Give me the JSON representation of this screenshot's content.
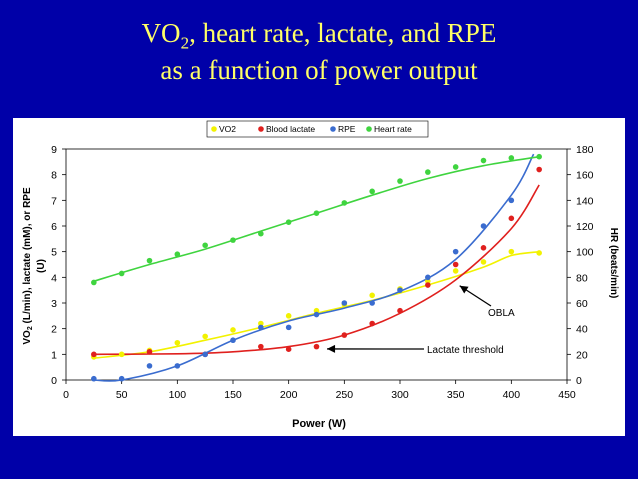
{
  "slide": {
    "title_prefix": "VO",
    "title_sub": "2",
    "title_rest": ", heart rate, lactate, and RPE",
    "title_line2": "as a function of power output"
  },
  "colors": {
    "background": "#0000a8",
    "title": "#ffff66",
    "vo2": "#f2f200",
    "lactate": "#e0201e",
    "rpe": "#3a6ccf",
    "hr": "#3fd43f"
  },
  "chart_data": {
    "type": "scatter",
    "title": "",
    "xlabel": "Power (W)",
    "ylabel": "VO2 (L/min), lactate (mM), or RPE (U)",
    "ylabel_line1": "VO",
    "ylabel_sub": "2",
    "ylabel_line1_rest": " (L/min), lactate (mM), or RPE",
    "ylabel_line2": "(U)",
    "y2label": "HR (beats/min)",
    "xlim": [
      0,
      450
    ],
    "ylim": [
      0,
      9
    ],
    "y2lim": [
      0,
      180
    ],
    "xticks": [
      0,
      50,
      100,
      150,
      200,
      250,
      300,
      350,
      400,
      450
    ],
    "yticks": [
      0,
      1,
      2,
      3,
      4,
      5,
      6,
      7,
      8,
      9
    ],
    "y2ticks": [
      0,
      20,
      40,
      60,
      80,
      100,
      120,
      140,
      160,
      180
    ],
    "legend_position": "top",
    "series": [
      {
        "name": "VO2",
        "axis": "left",
        "color_key": "vo2",
        "x": [
          25,
          50,
          75,
          100,
          125,
          150,
          175,
          200,
          225,
          250,
          275,
          300,
          325,
          350,
          375,
          400,
          425
        ],
        "y": [
          0.9,
          1.0,
          1.15,
          1.45,
          1.7,
          1.95,
          2.2,
          2.5,
          2.7,
          2.95,
          3.3,
          3.55,
          3.85,
          4.25,
          4.6,
          5.0,
          4.95
        ],
        "fit": [
          [
            25,
            0.85
          ],
          [
            75,
            1.1
          ],
          [
            125,
            1.55
          ],
          [
            175,
            2.05
          ],
          [
            225,
            2.6
          ],
          [
            275,
            3.1
          ],
          [
            325,
            3.7
          ],
          [
            375,
            4.4
          ],
          [
            400,
            4.85
          ],
          [
            425,
            5.0
          ]
        ]
      },
      {
        "name": "Blood lactate",
        "axis": "left",
        "color_key": "lactate",
        "x": [
          25,
          75,
          125,
          175,
          200,
          225,
          250,
          275,
          300,
          325,
          350,
          375,
          400,
          425
        ],
        "y": [
          1.0,
          1.1,
          1.0,
          1.3,
          1.2,
          1.3,
          1.75,
          2.2,
          2.7,
          3.7,
          4.5,
          5.15,
          6.3,
          8.2
        ],
        "fit": [
          [
            25,
            1.0
          ],
          [
            100,
            1.02
          ],
          [
            150,
            1.1
          ],
          [
            200,
            1.3
          ],
          [
            250,
            1.75
          ],
          [
            300,
            2.6
          ],
          [
            350,
            3.9
          ],
          [
            400,
            5.9
          ],
          [
            425,
            7.6
          ]
        ]
      },
      {
        "name": "RPE",
        "axis": "left",
        "color_key": "rpe",
        "x": [
          25,
          50,
          75,
          100,
          125,
          150,
          175,
          200,
          225,
          250,
          275,
          300,
          325,
          350,
          375,
          400
        ],
        "y": [
          0.05,
          0.05,
          0.55,
          0.55,
          1.0,
          1.55,
          2.05,
          2.05,
          2.55,
          3.0,
          3.0,
          3.5,
          4.0,
          5.0,
          6.0,
          7.0
        ],
        "fit": [
          [
            25,
            0.0
          ],
          [
            50,
            0.0
          ],
          [
            100,
            0.55
          ],
          [
            150,
            1.55
          ],
          [
            200,
            2.3
          ],
          [
            250,
            2.8
          ],
          [
            300,
            3.45
          ],
          [
            350,
            4.7
          ],
          [
            400,
            7.2
          ],
          [
            420,
            8.8
          ]
        ]
      },
      {
        "name": "Heart rate",
        "axis": "right",
        "color_key": "hr",
        "x": [
          25,
          50,
          75,
          100,
          125,
          150,
          175,
          200,
          225,
          250,
          275,
          300,
          325,
          350,
          375,
          400,
          425
        ],
        "y": [
          76,
          83,
          93,
          98,
          105,
          109,
          114,
          123,
          130,
          138,
          147,
          155,
          162,
          166,
          171,
          173,
          174
        ],
        "fit": [
          [
            25,
            77
          ],
          [
            75,
            90
          ],
          [
            125,
            102
          ],
          [
            175,
            116
          ],
          [
            225,
            130
          ],
          [
            275,
            144
          ],
          [
            325,
            157
          ],
          [
            375,
            167
          ],
          [
            425,
            174
          ]
        ]
      }
    ],
    "annotations": [
      {
        "text": "OBLA",
        "x": 350,
        "y": 3.75
      },
      {
        "text": "Lactate threshold",
        "x": 230,
        "y": 1.25
      }
    ]
  }
}
